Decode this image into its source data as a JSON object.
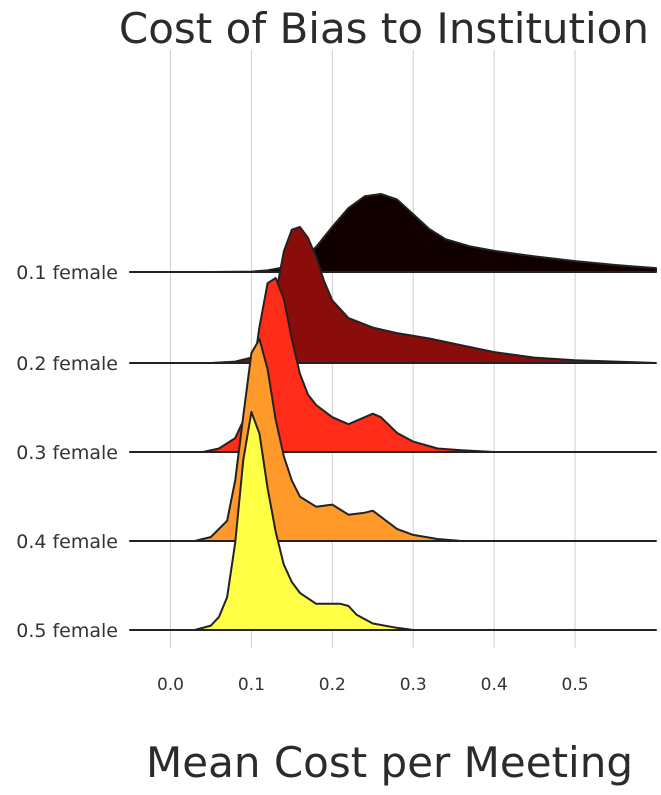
{
  "chart_data": {
    "type": "ridgeline",
    "title": "Cost of Bias to Institution",
    "xlabel": "Mean Cost per Meeting",
    "ylabel": "",
    "xlim": [
      -0.05,
      0.6
    ],
    "x_ticks": [
      0.0,
      0.1,
      0.2,
      0.3,
      0.4,
      0.5
    ],
    "x_tick_labels": [
      "0.0",
      "0.1",
      "0.2",
      "0.3",
      "0.4",
      "0.5"
    ],
    "grid": true,
    "legend": "none",
    "series": [
      {
        "name": "0.1 female",
        "color": "#120000",
        "x": [
          -0.05,
          0.0,
          0.05,
          0.1,
          0.12,
          0.14,
          0.16,
          0.18,
          0.2,
          0.22,
          0.24,
          0.26,
          0.28,
          0.3,
          0.32,
          0.34,
          0.37,
          0.4,
          0.45,
          0.5,
          0.55,
          0.6
        ],
        "density": [
          0.0,
          0.0,
          0.0,
          0.005,
          0.02,
          0.06,
          0.15,
          0.32,
          0.58,
          0.82,
          0.97,
          1.0,
          0.93,
          0.74,
          0.55,
          0.42,
          0.33,
          0.27,
          0.2,
          0.14,
          0.09,
          0.05
        ]
      },
      {
        "name": "0.2 female",
        "color": "#8b0d0b",
        "x": [
          -0.05,
          0.0,
          0.05,
          0.08,
          0.1,
          0.12,
          0.13,
          0.14,
          0.15,
          0.16,
          0.17,
          0.18,
          0.19,
          0.2,
          0.22,
          0.25,
          0.28,
          0.32,
          0.36,
          0.4,
          0.45,
          0.5,
          0.55,
          0.6
        ],
        "density": [
          0.0,
          0.0,
          0.0,
          0.01,
          0.04,
          0.2,
          0.5,
          0.82,
          0.98,
          1.0,
          0.92,
          0.78,
          0.6,
          0.46,
          0.33,
          0.26,
          0.22,
          0.18,
          0.13,
          0.08,
          0.04,
          0.02,
          0.01,
          0.0
        ]
      },
      {
        "name": "0.3 female",
        "color": "#ff2c19",
        "x": [
          -0.05,
          0.0,
          0.04,
          0.06,
          0.08,
          0.09,
          0.1,
          0.11,
          0.12,
          0.13,
          0.14,
          0.15,
          0.16,
          0.17,
          0.18,
          0.2,
          0.22,
          0.24,
          0.25,
          0.26,
          0.28,
          0.3,
          0.33,
          0.36,
          0.4,
          0.45,
          0.5,
          0.55,
          0.6
        ],
        "density": [
          0.0,
          0.0,
          0.0,
          0.02,
          0.08,
          0.18,
          0.4,
          0.72,
          0.97,
          1.0,
          0.88,
          0.65,
          0.45,
          0.33,
          0.27,
          0.2,
          0.16,
          0.2,
          0.22,
          0.2,
          0.11,
          0.06,
          0.02,
          0.01,
          0.0,
          0.0,
          0.0,
          0.0,
          0.0
        ]
      },
      {
        "name": "0.4 female",
        "color": "#ff9a2a",
        "x": [
          -0.05,
          0.0,
          0.03,
          0.05,
          0.07,
          0.08,
          0.09,
          0.1,
          0.11,
          0.12,
          0.13,
          0.14,
          0.15,
          0.16,
          0.18,
          0.2,
          0.22,
          0.24,
          0.25,
          0.26,
          0.28,
          0.3,
          0.33,
          0.36,
          0.4,
          0.45,
          0.5,
          0.55,
          0.6
        ],
        "density": [
          0.0,
          0.0,
          0.0,
          0.02,
          0.1,
          0.3,
          0.62,
          0.93,
          1.0,
          0.85,
          0.6,
          0.42,
          0.3,
          0.22,
          0.17,
          0.18,
          0.13,
          0.14,
          0.15,
          0.12,
          0.06,
          0.03,
          0.01,
          0.0,
          0.0,
          0.0,
          0.0,
          0.0,
          0.0
        ]
      },
      {
        "name": "0.5 female",
        "color": "#ffff45",
        "x": [
          -0.05,
          0.0,
          0.03,
          0.05,
          0.06,
          0.07,
          0.08,
          0.09,
          0.1,
          0.11,
          0.12,
          0.13,
          0.14,
          0.15,
          0.16,
          0.18,
          0.2,
          0.21,
          0.22,
          0.23,
          0.25,
          0.28,
          0.3,
          0.33,
          0.36,
          0.4,
          0.45,
          0.5,
          0.55,
          0.6
        ],
        "density": [
          0.0,
          0.0,
          0.0,
          0.02,
          0.06,
          0.15,
          0.4,
          0.78,
          1.0,
          0.9,
          0.65,
          0.45,
          0.3,
          0.22,
          0.17,
          0.12,
          0.12,
          0.12,
          0.11,
          0.07,
          0.03,
          0.01,
          0.0,
          0.0,
          0.0,
          0.0,
          0.0,
          0.0,
          0.0,
          0.0
        ]
      }
    ]
  }
}
